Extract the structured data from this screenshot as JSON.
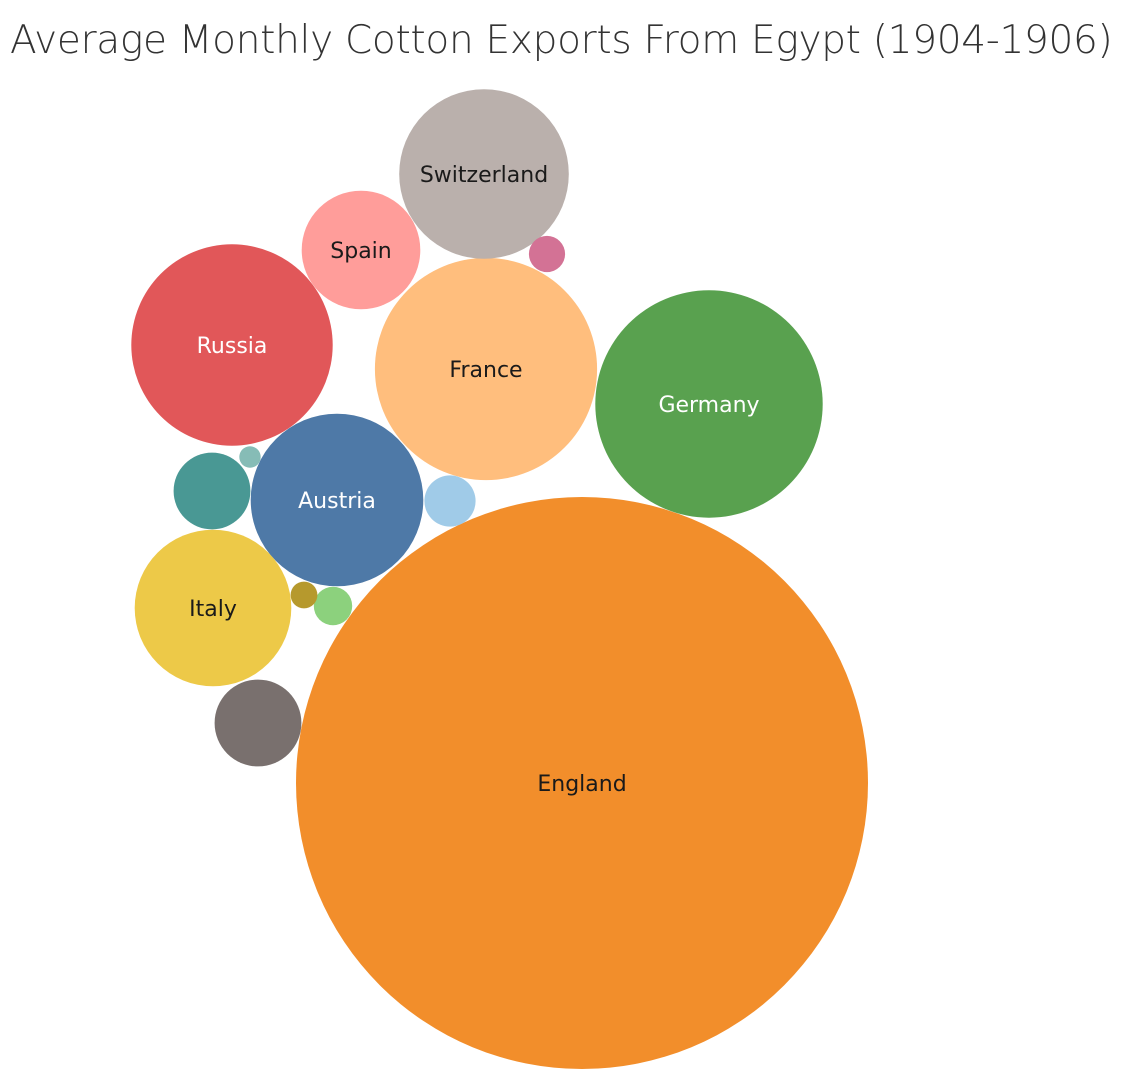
{
  "chart_data": {
    "type": "bubble",
    "title": "Average Monthly Cotton Exports From Egypt (1904-1906)",
    "bubbles": [
      {
        "name": "England",
        "value": 100,
        "color": "#F28E2B",
        "label": "England",
        "label_color": "#1a1a1a"
      },
      {
        "name": "Germany",
        "value": 15.8,
        "color": "#59A14F",
        "label": "Germany",
        "label_color": "#ffffff"
      },
      {
        "name": "France",
        "value": 15.1,
        "color": "#FFBE7D",
        "label": "France",
        "label_color": "#1a1a1a"
      },
      {
        "name": "Russia",
        "value": 12.4,
        "color": "#E15759",
        "label": "Russia",
        "label_color": "#ffffff"
      },
      {
        "name": "Austria",
        "value": 9.1,
        "color": "#4E79A7",
        "label": "Austria",
        "label_color": "#ffffff"
      },
      {
        "name": "Switzerland",
        "value": 8.8,
        "color": "#BAB0AC",
        "label": "Switzerland",
        "label_color": "#1a1a1a"
      },
      {
        "name": "Italy",
        "value": 7.5,
        "color": "#EDC948",
        "label": "Italy",
        "label_color": "#1a1a1a"
      },
      {
        "name": "Spain",
        "value": 4.3,
        "color": "#FF9D9A",
        "label": "Spain",
        "label_color": "#1a1a1a"
      },
      {
        "name": "",
        "value": 2.3,
        "color": "#79706E",
        "label": "",
        "label_color": ""
      },
      {
        "name": "",
        "value": 1.8,
        "color": "#499894",
        "label": "",
        "label_color": ""
      },
      {
        "name": "",
        "value": 0.8,
        "color": "#A0CBE8",
        "label": "",
        "label_color": ""
      },
      {
        "name": "",
        "value": 0.45,
        "color": "#8CD17D",
        "label": "",
        "label_color": ""
      },
      {
        "name": "",
        "value": 0.4,
        "color": "#D37295",
        "label": "",
        "label_color": ""
      },
      {
        "name": "",
        "value": 0.22,
        "color": "#B6992D",
        "label": "",
        "label_color": ""
      },
      {
        "name": "",
        "value": 0.14,
        "color": "#86BCB6",
        "label": "",
        "label_color": ""
      }
    ]
  }
}
